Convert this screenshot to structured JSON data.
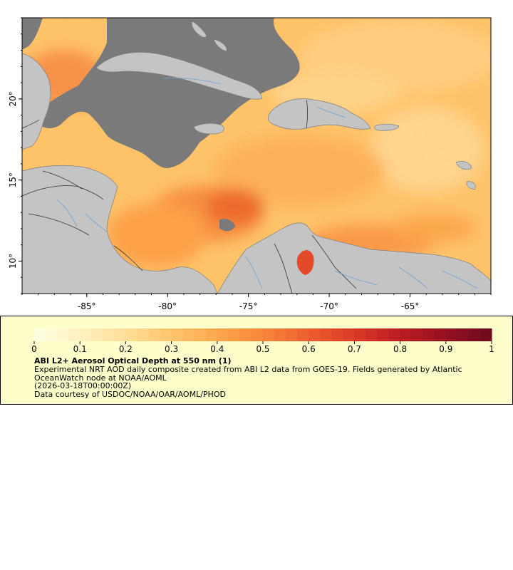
{
  "map": {
    "lon_ticks": [
      {
        "value": -85,
        "label": "-85°"
      },
      {
        "value": -80,
        "label": "-80°"
      },
      {
        "value": -75,
        "label": "-75°"
      },
      {
        "value": -70,
        "label": "-70°"
      },
      {
        "value": -65,
        "label": "-65°"
      }
    ],
    "lat_ticks": [
      {
        "value": 20,
        "label": "20°"
      },
      {
        "value": 15,
        "label": "15°"
      },
      {
        "value": 10,
        "label": "10°"
      }
    ],
    "lon_range": [
      -89,
      -60
    ],
    "lat_range": [
      8,
      25
    ],
    "colors": {
      "land": "#c4c4c4",
      "cloud_nodata": "#7a7a7a",
      "rivers": "#6fa0cf",
      "borders": "#333333",
      "coast": "#7d7d7d"
    }
  },
  "legend": {
    "scale_min": 0,
    "scale_max": 1,
    "tick_labels": [
      "0",
      "0.1",
      "0.2",
      "0.3",
      "0.4",
      "0.5",
      "0.6",
      "0.7",
      "0.8",
      "0.9",
      "1"
    ],
    "title": "ABI L2+ Aerosol Optical Depth at 550 nm (1)",
    "description": "Experimental NRT AOD daily composite created from ABI L2 data from GOES-19. Fields generated by Atlantic OceanWatch node at NOAA/AOML",
    "time": "(2026-03-18T00:00:00Z)",
    "credit": "Data courtesy of USDOC/NOAA/OAR/AOML/PHOD",
    "colors": [
      "#ffffe5",
      "#fff1c0",
      "#ffdf99",
      "#ffc66e",
      "#fca84d",
      "#f7863a",
      "#ec5f2e",
      "#d93a26",
      "#bb1c22",
      "#951020",
      "#6d0a1e"
    ]
  }
}
